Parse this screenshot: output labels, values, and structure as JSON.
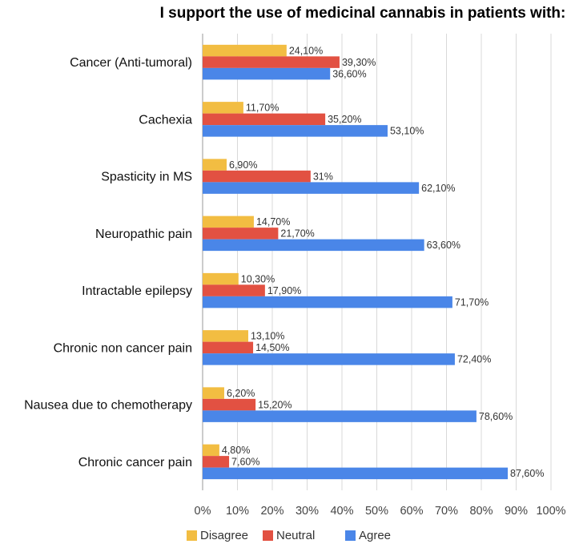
{
  "chart_data": {
    "type": "bar",
    "orientation": "horizontal",
    "title": "I support the use of medicinal cannabis in patients with:",
    "categories": [
      "Cancer (Anti-tumoral)",
      "Cachexia",
      "Spasticity in MS",
      "Neuropathic pain",
      "Intractable epilepsy",
      "Chronic non cancer pain",
      "Nausea due to chemotherapy",
      "Chronic cancer pain"
    ],
    "series": [
      {
        "name": "Disagree",
        "color": "#f2bd42",
        "values": [
          24.1,
          11.7,
          6.9,
          14.7,
          10.3,
          13.1,
          6.2,
          4.8
        ],
        "labels": [
          "24,10%",
          "11,70%",
          "6,90%",
          "14,70%",
          "10,30%",
          "13,10%",
          "6,20%",
          "4,80%"
        ]
      },
      {
        "name": "Neutral",
        "color": "#e25142",
        "values": [
          39.3,
          35.2,
          31,
          21.7,
          17.9,
          14.5,
          15.2,
          7.6
        ],
        "labels": [
          "39,30%",
          "35,20%",
          "31%",
          "21,70%",
          "17,90%",
          "14,50%",
          "15,20%",
          "7,60%"
        ]
      },
      {
        "name": "Agree",
        "color": "#4a86e8",
        "values": [
          36.6,
          53.1,
          62.1,
          63.6,
          71.7,
          72.4,
          78.6,
          87.6
        ],
        "labels": [
          "36,60%",
          "53,10%",
          "62,10%",
          "63,60%",
          "71,70%",
          "72,40%",
          "78,60%",
          "87,60%"
        ]
      }
    ],
    "xlim": [
      0,
      100
    ],
    "x_ticks": [
      "0%",
      "10%",
      "20%",
      "30%",
      "40%",
      "50%",
      "60%",
      "70%",
      "80%",
      "90%",
      "100%"
    ],
    "grid": true,
    "legend_position": "bottom"
  }
}
